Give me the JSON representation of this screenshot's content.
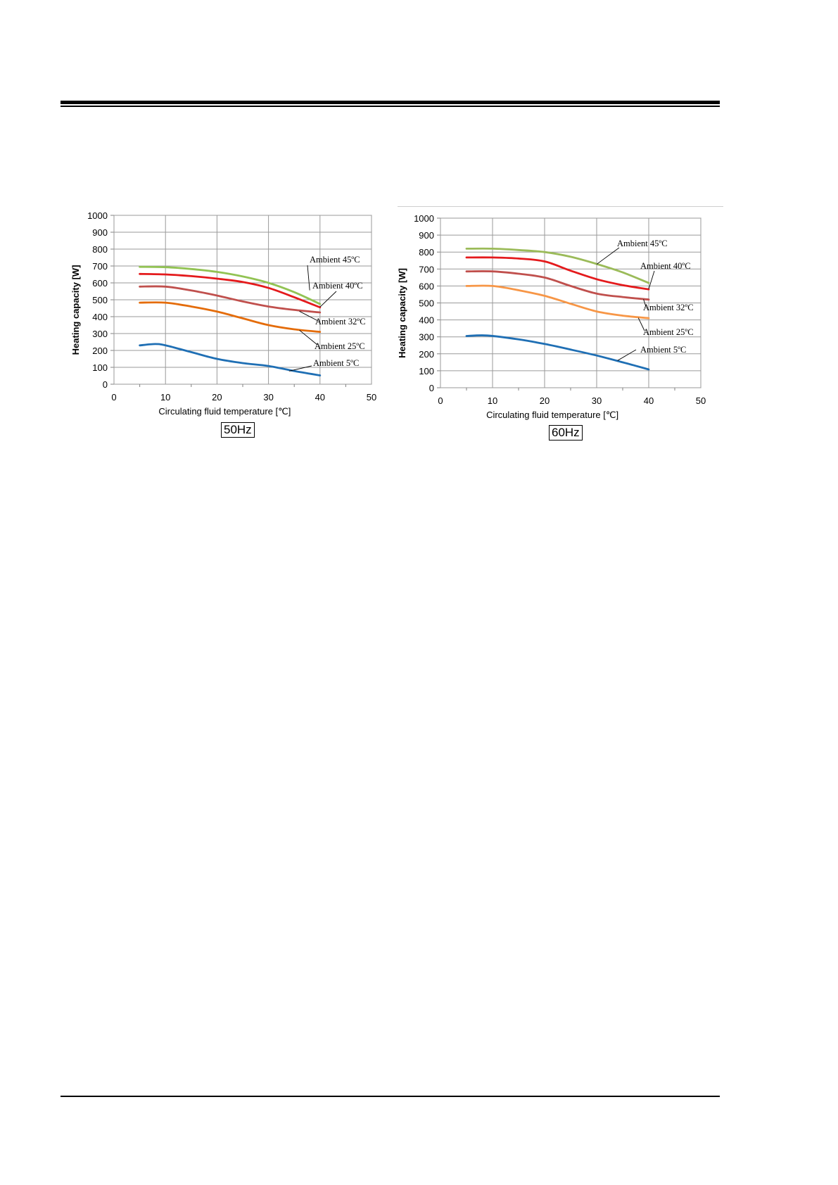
{
  "chart_data": [
    {
      "type": "line",
      "frequency_label": "50Hz",
      "xlabel": "Circulating fluid temperature [℃]",
      "ylabel": "Heating capacity [W]",
      "xlim": [
        0,
        50
      ],
      "ylim": [
        0,
        1000
      ],
      "xticks": [
        0,
        10,
        20,
        30,
        40,
        50
      ],
      "yticks": [
        0,
        100,
        200,
        300,
        400,
        500,
        600,
        700,
        800,
        900,
        1000
      ],
      "grid": true,
      "series": [
        {
          "name": "Ambient 45ºC",
          "color": "#92c353",
          "x": [
            5,
            10,
            15,
            20,
            25,
            30,
            35,
            40
          ],
          "y": [
            695,
            693,
            682,
            665,
            638,
            600,
            545,
            475
          ]
        },
        {
          "name": "Ambient 40ºC",
          "color": "#e41a1c",
          "x": [
            5,
            10,
            15,
            20,
            25,
            30,
            35,
            40
          ],
          "y": [
            653,
            650,
            640,
            625,
            605,
            570,
            515,
            455
          ]
        },
        {
          "name": "Ambient 32ºC",
          "color": "#c0504d",
          "x": [
            5,
            10,
            15,
            20,
            25,
            30,
            35,
            40
          ],
          "y": [
            578,
            578,
            555,
            525,
            490,
            460,
            440,
            425
          ]
        },
        {
          "name": "Ambient 25ºC",
          "color": "#e46c0a",
          "x": [
            5,
            10,
            15,
            20,
            25,
            30,
            35,
            40
          ],
          "y": [
            483,
            483,
            460,
            430,
            390,
            350,
            325,
            310
          ]
        },
        {
          "name": "Ambient 5ºC",
          "color": "#1f6fb4",
          "x": [
            5,
            8,
            10,
            15,
            20,
            25,
            30,
            35,
            40
          ],
          "y": [
            230,
            238,
            230,
            190,
            150,
            125,
            108,
            78,
            52
          ]
        }
      ],
      "annotations": [
        {
          "text": "Ambient 45ºC",
          "series": 0
        },
        {
          "text": "Ambient 40ºC",
          "series": 1
        },
        {
          "text": "Ambient 32ºC",
          "series": 2
        },
        {
          "text": "Ambient 25ºC",
          "series": 3
        },
        {
          "text": "Ambient 5ºC",
          "series": 4
        }
      ]
    },
    {
      "type": "line",
      "frequency_label": "60Hz",
      "xlabel": "Circulating fluid temperature [℃]",
      "ylabel": "Heating capacity [W]",
      "xlim": [
        0,
        50
      ],
      "ylim": [
        0,
        1000
      ],
      "xticks": [
        0,
        10,
        20,
        30,
        40,
        50
      ],
      "yticks": [
        0,
        100,
        200,
        300,
        400,
        500,
        600,
        700,
        800,
        900,
        1000
      ],
      "grid": true,
      "series": [
        {
          "name": "Ambient 45ºC",
          "color": "#9bbb59",
          "x": [
            5,
            10,
            15,
            20,
            25,
            30,
            35,
            40
          ],
          "y": [
            820,
            820,
            812,
            800,
            772,
            730,
            680,
            618
          ]
        },
        {
          "name": "Ambient 40ºC",
          "color": "#e41a1c",
          "x": [
            5,
            10,
            15,
            20,
            25,
            30,
            35,
            40
          ],
          "y": [
            768,
            768,
            762,
            745,
            690,
            640,
            605,
            580
          ]
        },
        {
          "name": "Ambient 32ºC",
          "color": "#c0504d",
          "x": [
            5,
            10,
            15,
            20,
            25,
            30,
            35,
            40
          ],
          "y": [
            686,
            686,
            672,
            650,
            600,
            555,
            535,
            520
          ]
        },
        {
          "name": "Ambient 25ºC",
          "color": "#f79646",
          "x": [
            5,
            10,
            15,
            20,
            25,
            30,
            35,
            40
          ],
          "y": [
            600,
            600,
            575,
            542,
            495,
            450,
            425,
            410
          ]
        },
        {
          "name": "Ambient 5ºC",
          "color": "#1f6fb4",
          "x": [
            5,
            9,
            15,
            20,
            25,
            30,
            35,
            40
          ],
          "y": [
            305,
            308,
            285,
            258,
            225,
            190,
            150,
            108
          ]
        }
      ],
      "annotations": [
        {
          "text": "Ambient 45ºC",
          "series": 0
        },
        {
          "text": "Ambient 40ºC",
          "series": 1
        },
        {
          "text": "Ambient 32ºC",
          "series": 2
        },
        {
          "text": "Ambient 25ºC",
          "series": 3
        },
        {
          "text": "Ambient 5ºC",
          "series": 4
        }
      ]
    }
  ]
}
